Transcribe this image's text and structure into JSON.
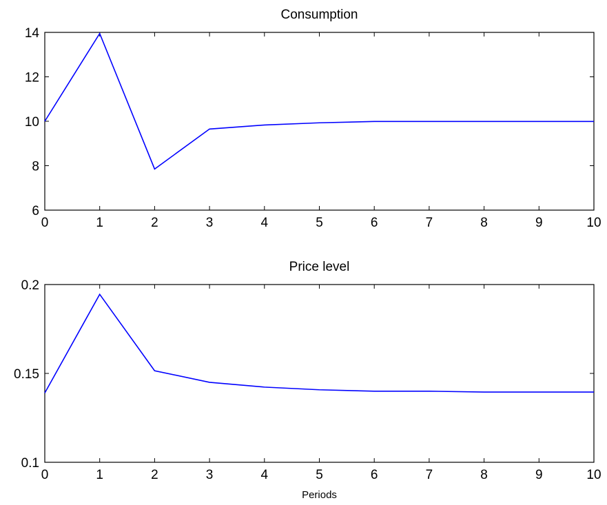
{
  "chart_data": [
    {
      "type": "line",
      "title": "Consumption",
      "xlabel": "",
      "ylabel": "",
      "xlim": [
        0,
        10
      ],
      "ylim": [
        6,
        14
      ],
      "xticks": [
        "0",
        "1",
        "2",
        "3",
        "4",
        "5",
        "6",
        "7",
        "8",
        "9",
        "10"
      ],
      "yticks": [
        "6",
        "8",
        "10",
        "12",
        "14"
      ],
      "grid": false,
      "series": [
        {
          "color": "#0000ff",
          "x": [
            0,
            1,
            2,
            3,
            4,
            5,
            6,
            7,
            8,
            9,
            10
          ],
          "y": [
            10.0,
            13.95,
            7.85,
            9.65,
            9.83,
            9.93,
            9.99,
            9.99,
            9.99,
            9.99,
            9.99
          ]
        }
      ]
    },
    {
      "type": "line",
      "title": "Price level",
      "xlabel": "Periods",
      "ylabel": "",
      "xlim": [
        0,
        10
      ],
      "ylim": [
        0.1,
        0.2
      ],
      "xticks": [
        "0",
        "1",
        "2",
        "3",
        "4",
        "5",
        "6",
        "7",
        "8",
        "9",
        "10"
      ],
      "yticks": [
        "0.1",
        "0.15",
        "0.2"
      ],
      "grid": false,
      "series": [
        {
          "color": "#0000ff",
          "x": [
            0,
            1,
            2,
            3,
            4,
            5,
            6,
            7,
            8,
            9,
            10
          ],
          "y": [
            0.139,
            0.1945,
            0.1515,
            0.145,
            0.1423,
            0.1408,
            0.14,
            0.14,
            0.1395,
            0.1395,
            0.1395
          ]
        }
      ]
    }
  ]
}
